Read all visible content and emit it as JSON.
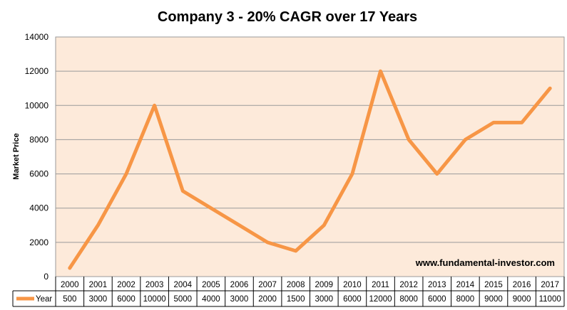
{
  "chart_data": {
    "type": "line",
    "title": "Company 3 - 20% CAGR over 17 Years",
    "ylabel": "Market Price",
    "xlabel": "",
    "ylim": [
      0,
      14000
    ],
    "yticks": [
      "0",
      "2000",
      "4000",
      "6000",
      "8000",
      "10000",
      "12000",
      "14000"
    ],
    "grid": "horizontal",
    "legend": "data-table-left",
    "categories": [
      "2000",
      "2001",
      "2002",
      "2003",
      "2004",
      "2005",
      "2006",
      "2007",
      "2008",
      "2009",
      "2010",
      "2011",
      "2012",
      "2013",
      "2014",
      "2015",
      "2016",
      "2017"
    ],
    "series": [
      {
        "name": "Year",
        "values": [
          500,
          3000,
          6000,
          10000,
          5000,
          4000,
          3000,
          2000,
          1500,
          3000,
          6000,
          12000,
          8000,
          6000,
          8000,
          9000,
          9000,
          11000
        ],
        "color": "#F79646"
      }
    ],
    "annotation": "www.fundamental-investor.com",
    "plot_background": "#FDEADA"
  }
}
